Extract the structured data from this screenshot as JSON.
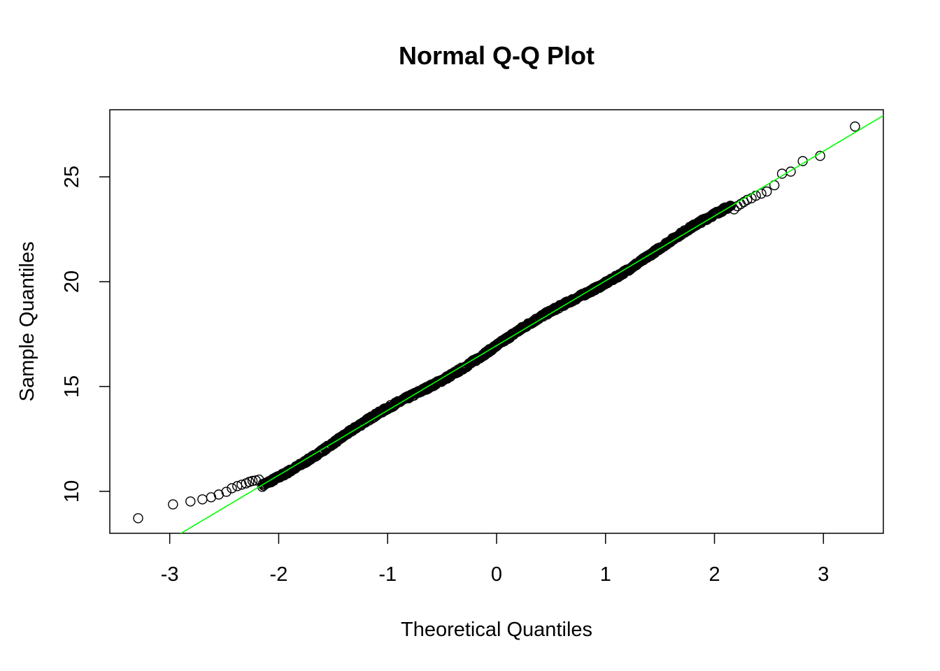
{
  "chart_data": {
    "type": "scatter",
    "title": "Normal Q-Q Plot",
    "xlabel": "Theoretical Quantiles",
    "ylabel": "Sample Quantiles",
    "xlim": [
      -3.55,
      3.55
    ],
    "ylim": [
      8.0,
      28.2
    ],
    "x_ticks": [
      -3,
      -2,
      -1,
      0,
      1,
      2,
      3
    ],
    "x_tick_labels": [
      "-3",
      "-2",
      "-1",
      "0",
      "1",
      "2",
      "3"
    ],
    "y_ticks": [
      10,
      15,
      20,
      25
    ],
    "y_tick_labels": [
      "10",
      "15",
      "20",
      "25"
    ],
    "grid": false,
    "legend": "none",
    "reference_line": {
      "color": "#00ff00",
      "intercept": 16.95,
      "slope": 3.09
    },
    "point_color": "#000000",
    "outlier_points": {
      "x": [
        -3.29,
        -2.97,
        -2.81,
        -2.7,
        -2.62,
        -2.55,
        -2.48,
        -2.43,
        -2.38,
        -2.34,
        -2.3,
        -2.27,
        -2.24,
        -2.21,
        -2.18,
        2.18,
        2.21,
        2.24,
        2.27,
        2.3,
        2.34,
        2.38,
        2.43,
        2.48,
        2.55,
        2.62,
        2.7,
        2.81,
        2.97,
        3.29
      ],
      "y": [
        8.72,
        9.38,
        9.52,
        9.62,
        9.72,
        9.85,
        9.98,
        10.15,
        10.25,
        10.32,
        10.38,
        10.45,
        10.5,
        10.52,
        10.56,
        23.45,
        23.6,
        23.7,
        23.8,
        23.9,
        23.98,
        24.1,
        24.2,
        24.3,
        24.6,
        25.15,
        25.25,
        25.75,
        26.0,
        27.4
      ]
    },
    "body_points": {
      "n": 900,
      "x_range": [
        -2.15,
        2.15
      ],
      "intercept": 16.95,
      "slope": 3.09
    }
  }
}
